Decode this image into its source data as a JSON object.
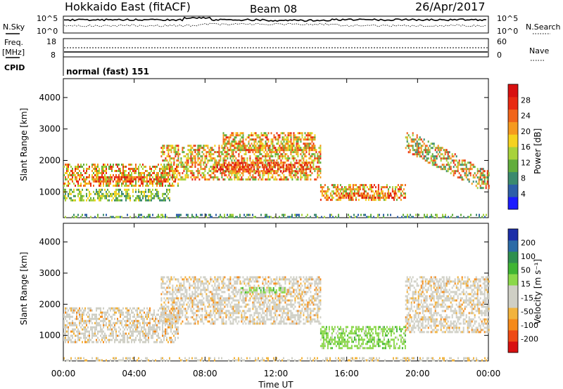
{
  "header": {
    "title": "Hokkaido East (fitACF)",
    "beam": "Beam 08",
    "date": "26/Apr/2017"
  },
  "noise_panel": {
    "left_label": "N.Sky",
    "right_label": "N.Search",
    "left_ticks": [
      "10^5",
      "10^0"
    ],
    "right_ticks": [
      "10^5",
      "10^0"
    ]
  },
  "freq_panel": {
    "left_label_1": "Freq.",
    "left_label_2": "[MHz]",
    "right_label": "Nave",
    "left_ticks": [
      "18",
      "8"
    ],
    "right_ticks": [
      "60",
      "0"
    ]
  },
  "cpid_panel": {
    "label": "CPID",
    "value": "normal (fast) 151"
  },
  "colors": {
    "power_scale": [
      "#1c1cff",
      "#2e5fa8",
      "#3b8a6e",
      "#62ad3c",
      "#a8d23a",
      "#f5d21f",
      "#f59a1f",
      "#f0641a",
      "#e82a12",
      "#d81010"
    ],
    "velocity_scale": [
      "#d81010",
      "#ee4a14",
      "#f58a1a",
      "#f2b33c",
      "#cfcfc5",
      "#cfcfc5",
      "#8bd84a",
      "#3fb533",
      "#2f8f4f",
      "#2c6aa6",
      "#1c2ea8"
    ]
  },
  "chart_data": [
    {
      "type": "heatmap",
      "name": "power",
      "ylabel": "Slant Range [km]",
      "xlabel": "",
      "x_ticks": [
        "00:00",
        "04:00",
        "08:00",
        "12:00",
        "16:00",
        "20:00",
        "00:00"
      ],
      "x_hours": [
        0,
        4,
        8,
        12,
        16,
        20,
        24
      ],
      "y_ticks": [
        1000,
        2000,
        3000,
        4000
      ],
      "ylim": [
        180,
        4600
      ],
      "xlim": [
        0,
        24
      ],
      "colorbar_label": "Power [dB]",
      "colorbar_ticks": [
        "4",
        "8",
        "12",
        "16",
        "20",
        "24",
        "28"
      ],
      "bands": [
        {
          "t0": 0.0,
          "t1": 6.5,
          "r0": 1200,
          "r1": 1900,
          "level": "mid"
        },
        {
          "t0": 1.5,
          "t1": 5.8,
          "r0": 1300,
          "r1": 1500,
          "level": "high"
        },
        {
          "t0": 0.0,
          "t1": 6.0,
          "r0": 750,
          "r1": 1100,
          "level": "low"
        },
        {
          "t0": 5.5,
          "t1": 14.5,
          "r0": 1400,
          "r1": 2500,
          "level": "mid"
        },
        {
          "t0": 8.5,
          "t1": 14.0,
          "r0": 1650,
          "r1": 1950,
          "level": "high"
        },
        {
          "t0": 9.0,
          "t1": 14.2,
          "r0": 2300,
          "r1": 2900,
          "level": "mid"
        },
        {
          "t0": 14.5,
          "t1": 19.3,
          "r0": 750,
          "r1": 1250,
          "level": "mid"
        },
        {
          "t0": 15.5,
          "t1": 18.8,
          "r0": 820,
          "r1": 980,
          "level": "high"
        },
        {
          "t0": 19.3,
          "t1": 24.0,
          "r0": 1100,
          "r1": 2900,
          "level": "diag"
        },
        {
          "t0": 0.0,
          "t1": 24.0,
          "r0": 180,
          "r1": 300,
          "level": "ground"
        }
      ]
    },
    {
      "type": "heatmap",
      "name": "velocity",
      "ylabel": "Slant Range [km]",
      "xlabel": "Time UT",
      "x_ticks": [
        "00:00",
        "04:00",
        "08:00",
        "12:00",
        "16:00",
        "20:00",
        "00:00"
      ],
      "x_hours": [
        0,
        4,
        8,
        12,
        16,
        20,
        24
      ],
      "y_ticks": [
        1000,
        2000,
        3000,
        4000
      ],
      "ylim": [
        180,
        4600
      ],
      "xlim": [
        0,
        24
      ],
      "colorbar_label": "Velocity [m s⁻¹]",
      "colorbar_ticks": [
        "-200",
        "-100",
        "-50",
        "-15",
        "15",
        "50",
        "100",
        "200"
      ],
      "bands": [
        {
          "t0": 0.0,
          "t1": 6.5,
          "r0": 750,
          "r1": 1900,
          "level": "gray"
        },
        {
          "t0": 5.5,
          "t1": 14.5,
          "r0": 1400,
          "r1": 2900,
          "level": "gray"
        },
        {
          "t0": 10.0,
          "t1": 12.5,
          "r0": 2350,
          "r1": 2550,
          "level": "green"
        },
        {
          "t0": 14.5,
          "t1": 19.3,
          "r0": 600,
          "r1": 1300,
          "level": "green"
        },
        {
          "t0": 19.3,
          "t1": 24.0,
          "r0": 1100,
          "r1": 2900,
          "level": "gray"
        },
        {
          "t0": 0.0,
          "t1": 24.0,
          "r0": 180,
          "r1": 300,
          "level": "ground"
        }
      ]
    }
  ]
}
